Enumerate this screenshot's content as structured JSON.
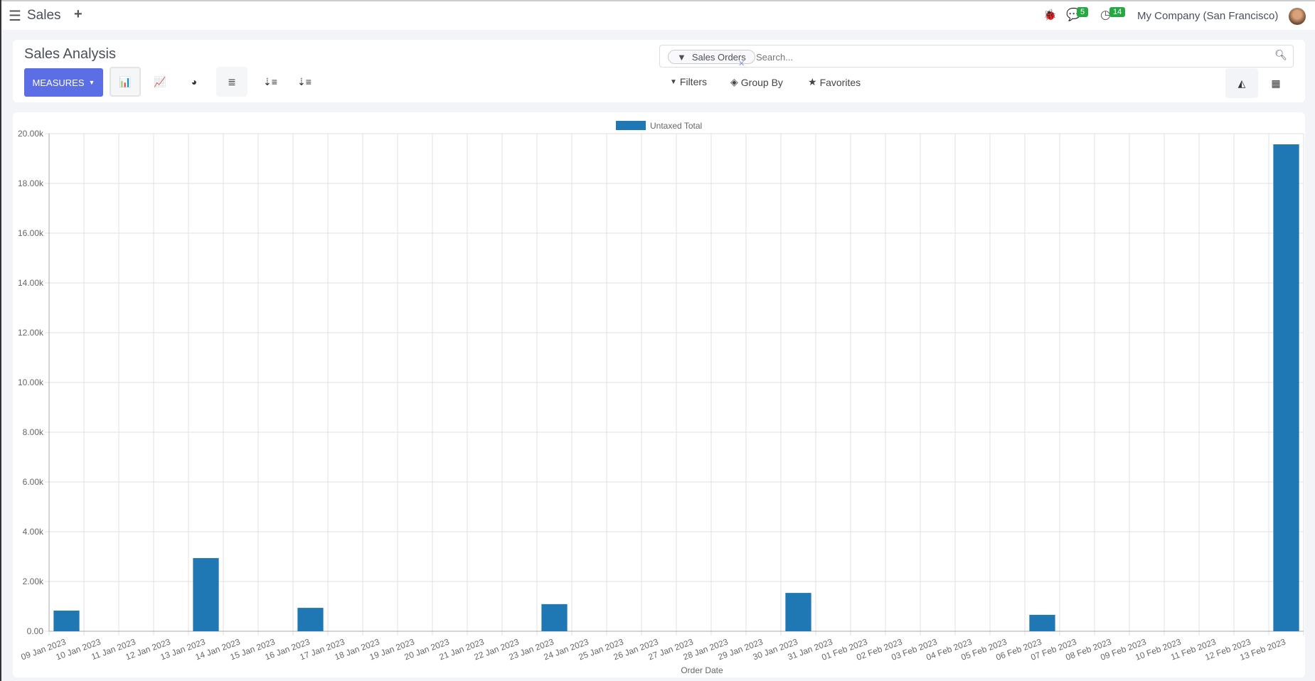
{
  "header": {
    "app_title": "Sales",
    "company": "My Company (San Francisco)",
    "messages_count": "5",
    "activities_count": "14"
  },
  "control": {
    "title": "Sales Analysis",
    "measures_label": "MEASURES",
    "search_facet": "Sales Orders",
    "search_placeholder": "Search...",
    "filters_label": "Filters",
    "groupby_label": "Group By",
    "favorites_label": "Favorites"
  },
  "chart_data": {
    "type": "bar",
    "xlabel": "Order Date",
    "ylabel": "",
    "ylim": [
      0,
      20000
    ],
    "grid": true,
    "legend": "top",
    "yticks": [
      "0.00",
      "2.00k",
      "4.00k",
      "6.00k",
      "8.00k",
      "10.00k",
      "12.00k",
      "14.00k",
      "16.00k",
      "18.00k",
      "20.00k"
    ],
    "categories": [
      "09 Jan 2023",
      "10 Jan 2023",
      "11 Jan 2023",
      "12 Jan 2023",
      "13 Jan 2023",
      "14 Jan 2023",
      "15 Jan 2023",
      "16 Jan 2023",
      "17 Jan 2023",
      "18 Jan 2023",
      "19 Jan 2023",
      "20 Jan 2023",
      "21 Jan 2023",
      "22 Jan 2023",
      "23 Jan 2023",
      "24 Jan 2023",
      "25 Jan 2023",
      "26 Jan 2023",
      "27 Jan 2023",
      "28 Jan 2023",
      "29 Jan 2023",
      "30 Jan 2023",
      "31 Jan 2023",
      "01 Feb 2023",
      "02 Feb 2023",
      "03 Feb 2023",
      "04 Feb 2023",
      "05 Feb 2023",
      "06 Feb 2023",
      "07 Feb 2023",
      "08 Feb 2023",
      "09 Feb 2023",
      "10 Feb 2023",
      "11 Feb 2023",
      "12 Feb 2023",
      "13 Feb 2023"
    ],
    "series": [
      {
        "name": "Untaxed Total",
        "color": "#1f77b4",
        "values": [
          830,
          0,
          0,
          0,
          2940,
          0,
          0,
          940,
          0,
          0,
          0,
          0,
          0,
          0,
          1090,
          0,
          0,
          0,
          0,
          0,
          0,
          1540,
          0,
          0,
          0,
          0,
          0,
          0,
          660,
          0,
          0,
          0,
          0,
          0,
          0,
          19570
        ]
      }
    ]
  }
}
